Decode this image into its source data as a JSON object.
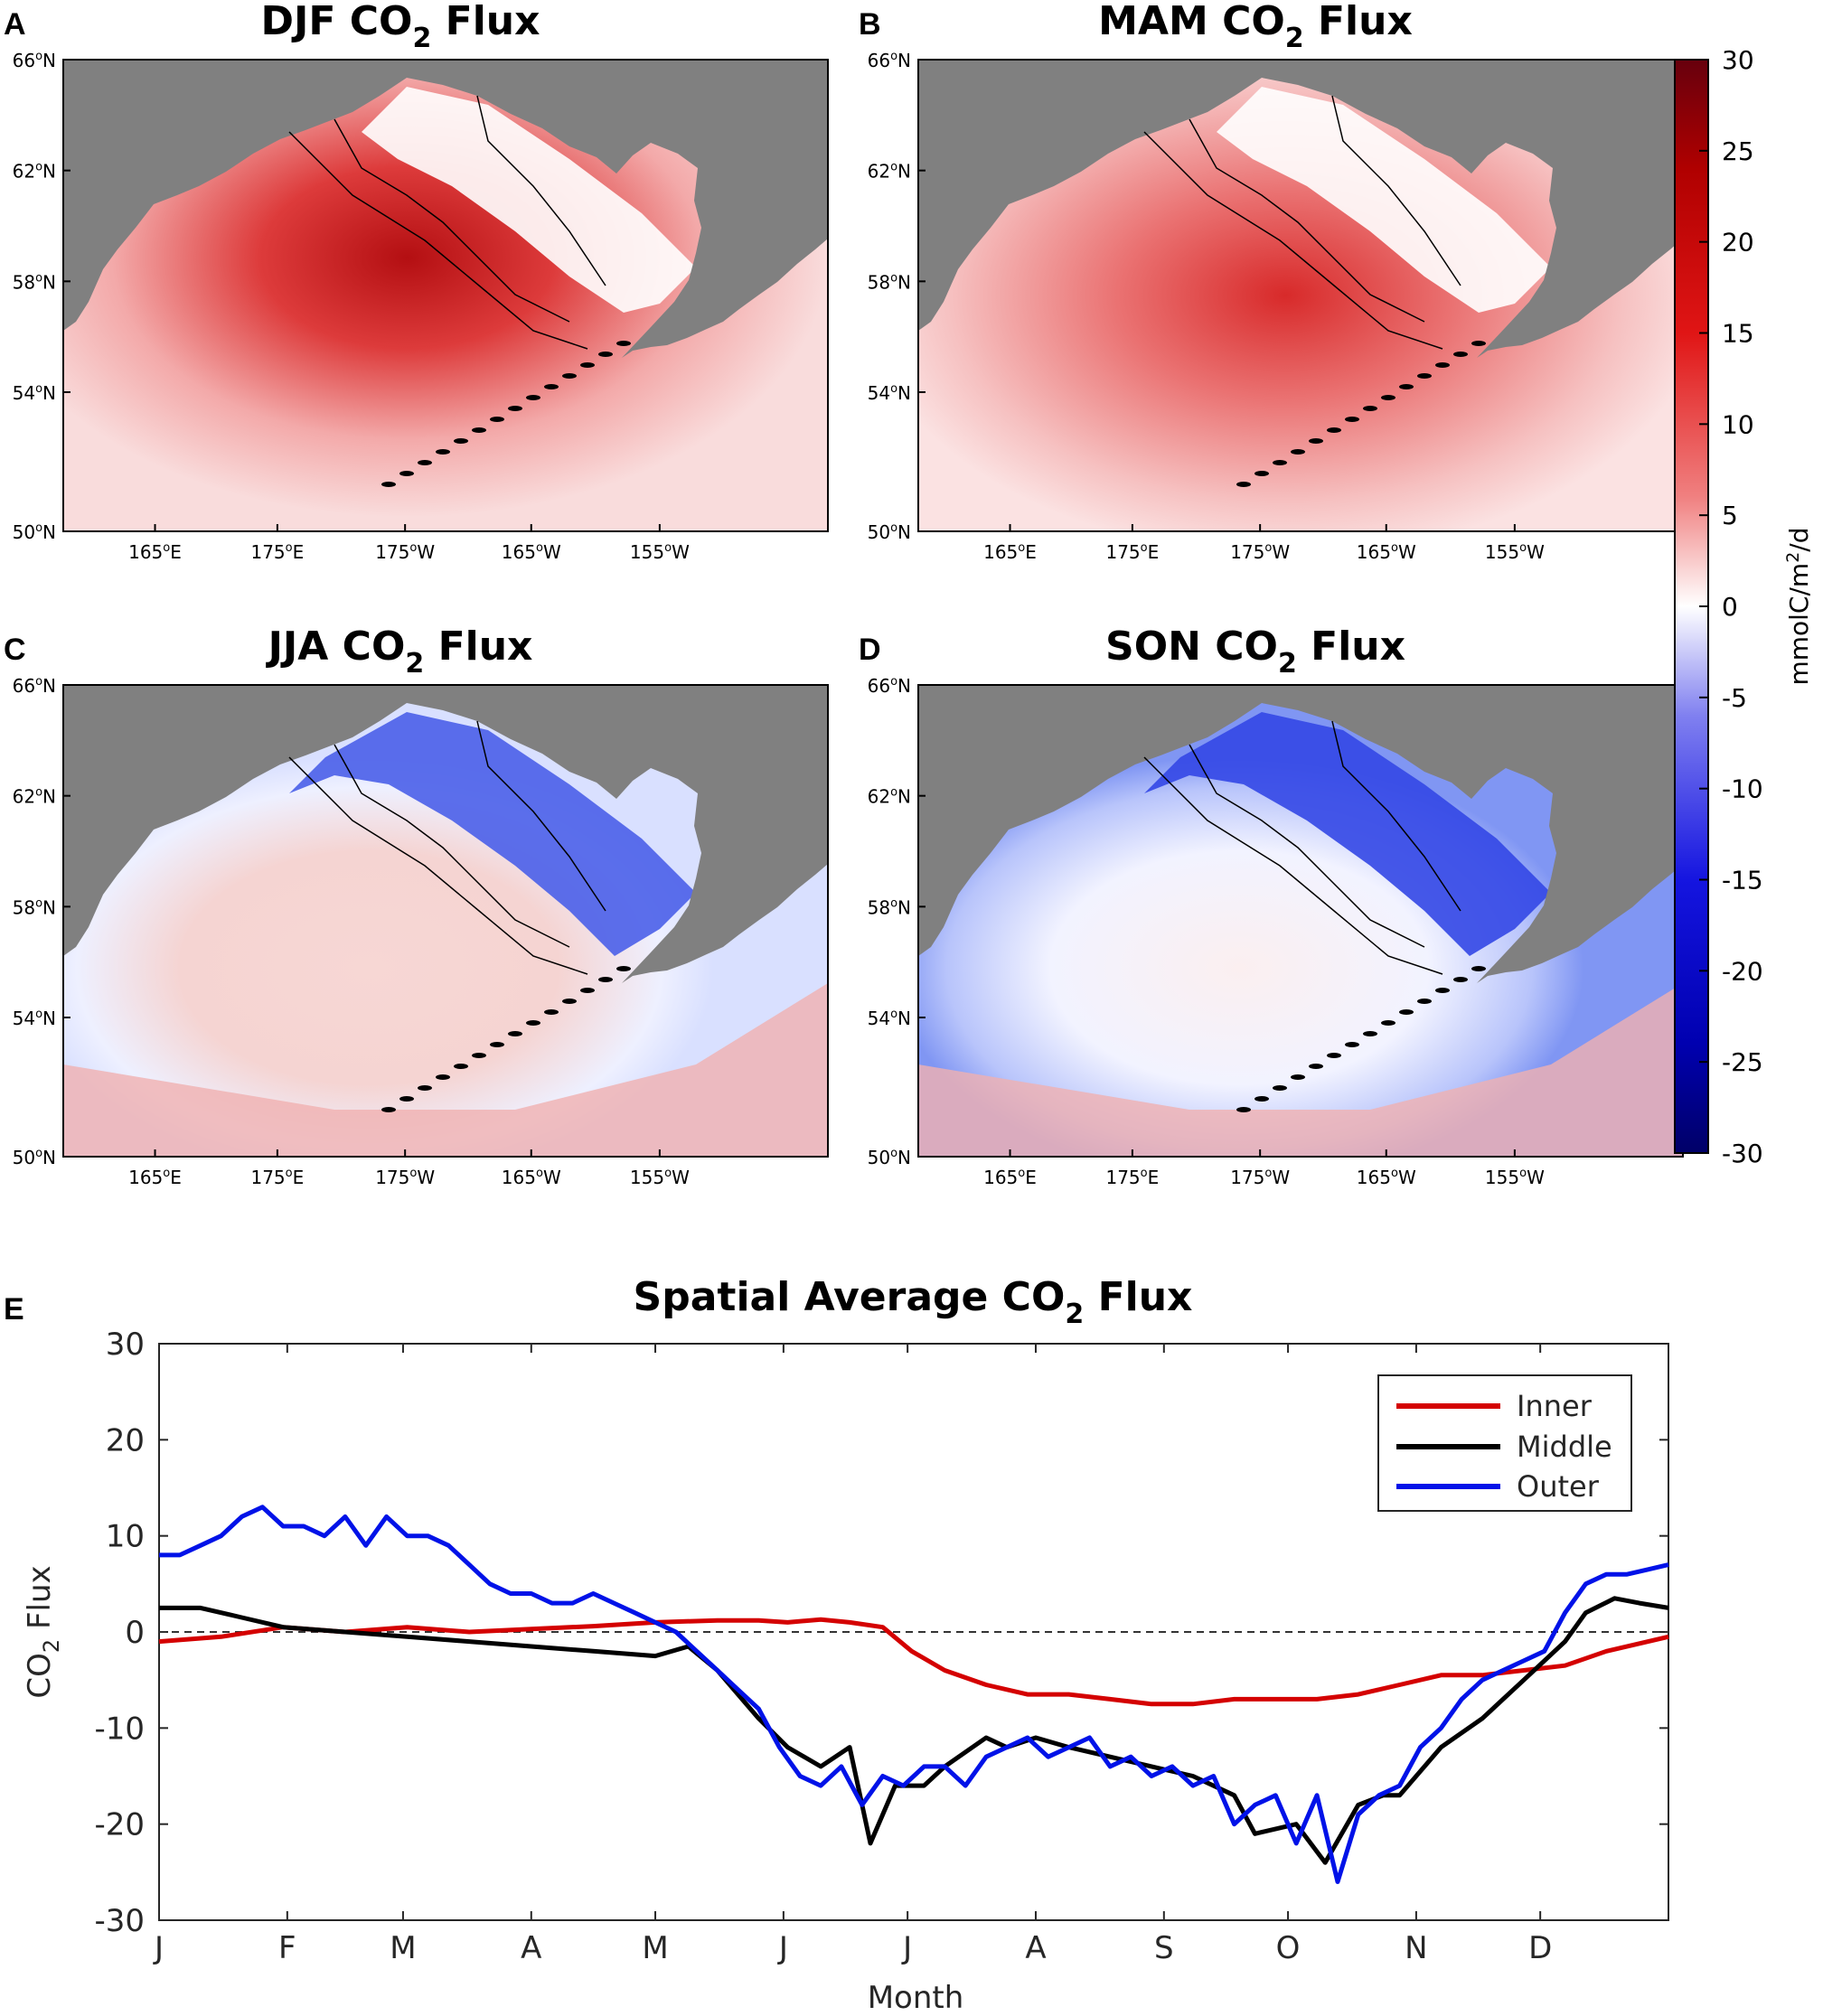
{
  "colors": {
    "land": "#808080",
    "inner": "#d40000",
    "middle": "#000000",
    "outer": "#0012e8",
    "zero_line": "#333333"
  },
  "maps": [
    {
      "panel": "A",
      "title_prefix": "DJF CO",
      "title_sub": "2",
      "title_suffix": " Flux",
      "season": "DJF"
    },
    {
      "panel": "B",
      "title_prefix": "MAM CO",
      "title_sub": "2",
      "title_suffix": " Flux",
      "season": "MAM"
    },
    {
      "panel": "C",
      "title_prefix": "JJA CO",
      "title_sub": "2",
      "title_suffix": " Flux",
      "season": "JJA"
    },
    {
      "panel": "D",
      "title_prefix": "SON CO",
      "title_sub": "2",
      "title_suffix": " Flux",
      "season": "SON"
    }
  ],
  "map_axes": {
    "lat_ticks": [
      {
        "deg": "66",
        "sup": "o",
        "hemi": "N"
      },
      {
        "deg": "62",
        "sup": "o",
        "hemi": "N"
      },
      {
        "deg": "58",
        "sup": "o",
        "hemi": "N"
      },
      {
        "deg": "54",
        "sup": "o",
        "hemi": "N"
      },
      {
        "deg": "50",
        "sup": "o",
        "hemi": "N"
      }
    ],
    "lon_ticks": [
      {
        "deg": "165",
        "sup": "o",
        "hemi": "E"
      },
      {
        "deg": "175",
        "sup": "o",
        "hemi": "E"
      },
      {
        "deg": "175",
        "sup": "o",
        "hemi": "W"
      },
      {
        "deg": "165",
        "sup": "o",
        "hemi": "W"
      },
      {
        "deg": "155",
        "sup": "o",
        "hemi": "W"
      }
    ]
  },
  "colorbar": {
    "min": -30,
    "max": 30,
    "ticks": [
      "30",
      "25",
      "20",
      "15",
      "10",
      "5",
      "0",
      "-5",
      "-10",
      "-15",
      "-20",
      "-25",
      "-30"
    ],
    "label_a": "mmolC/m",
    "label_sup": "2",
    "label_b": "/d"
  },
  "chart_data": {
    "type": "line",
    "panel": "E",
    "title_prefix": "Spatial Average CO",
    "title_sub": "2",
    "title_suffix": " Flux",
    "xlabel": "Month",
    "ylabel_prefix": "CO",
    "ylabel_sub": "2",
    "ylabel_suffix": " Flux",
    "ylim": [
      -30,
      30
    ],
    "xlim": [
      0,
      365
    ],
    "yticks": [
      "30",
      "20",
      "10",
      "0",
      "-10",
      "-20",
      "-30"
    ],
    "xticks": [
      "J",
      "F",
      "M",
      "A",
      "M",
      "J",
      "J",
      "A",
      "S",
      "O",
      "N",
      "D"
    ],
    "legend_position": "top-right",
    "reference_line": 0,
    "series": [
      {
        "name": "Inner",
        "x": [
          0,
          15,
          30,
          45,
          60,
          75,
          90,
          105,
          120,
          135,
          145,
          152,
          160,
          167,
          175,
          182,
          190,
          200,
          210,
          220,
          230,
          240,
          250,
          260,
          270,
          280,
          290,
          300,
          310,
          320,
          330,
          340,
          350,
          365
        ],
        "values": [
          -1,
          -0.5,
          0.5,
          0,
          0.5,
          0,
          0.3,
          0.6,
          1,
          1.2,
          1.2,
          1,
          1.3,
          1,
          0.5,
          -2,
          -4,
          -5.5,
          -6.5,
          -6.5,
          -7,
          -7.5,
          -7.5,
          -7,
          -7,
          -7,
          -6.5,
          -5.5,
          -4.5,
          -4.5,
          -4,
          -3.5,
          -2,
          -0.5
        ]
      },
      {
        "name": "Middle",
        "x": [
          0,
          10,
          20,
          30,
          45,
          60,
          75,
          90,
          105,
          120,
          128,
          135,
          145,
          152,
          160,
          167,
          172,
          178,
          185,
          190,
          200,
          205,
          212,
          220,
          230,
          240,
          250,
          260,
          265,
          275,
          282,
          290,
          296,
          300,
          310,
          320,
          330,
          340,
          345,
          352,
          358,
          365
        ],
        "values": [
          2.5,
          2.5,
          1.5,
          0.5,
          0,
          -0.5,
          -1,
          -1.5,
          -2,
          -2.5,
          -1.5,
          -4,
          -9,
          -12,
          -14,
          -12,
          -22,
          -16,
          -16,
          -14,
          -11,
          -12,
          -11,
          -12,
          -13,
          -14,
          -15,
          -17,
          -21,
          -20,
          -24,
          -18,
          -17,
          -17,
          -12,
          -9,
          -5,
          -1,
          2,
          3.5,
          3,
          2.5
        ]
      },
      {
        "name": "Outer",
        "x": [
          0,
          5,
          10,
          15,
          20,
          25,
          30,
          35,
          40,
          45,
          50,
          55,
          60,
          65,
          70,
          75,
          80,
          85,
          90,
          95,
          100,
          105,
          110,
          115,
          120,
          125,
          130,
          135,
          140,
          145,
          150,
          155,
          160,
          165,
          170,
          175,
          180,
          185,
          190,
          195,
          200,
          205,
          210,
          215,
          220,
          225,
          230,
          235,
          240,
          245,
          250,
          255,
          260,
          265,
          270,
          275,
          280,
          285,
          290,
          295,
          300,
          305,
          310,
          315,
          320,
          325,
          330,
          335,
          340,
          345,
          350,
          355,
          360,
          365
        ],
        "values": [
          8,
          8,
          9,
          10,
          12,
          13,
          11,
          11,
          10,
          12,
          9,
          12,
          10,
          10,
          9,
          7,
          5,
          4,
          4,
          3,
          3,
          4,
          3,
          2,
          1,
          0,
          -2,
          -4,
          -6,
          -8,
          -12,
          -15,
          -16,
          -14,
          -18,
          -15,
          -16,
          -14,
          -14,
          -16,
          -13,
          -12,
          -11,
          -13,
          -12,
          -11,
          -14,
          -13,
          -15,
          -14,
          -16,
          -15,
          -20,
          -18,
          -17,
          -22,
          -17,
          -26,
          -19,
          -17,
          -16,
          -12,
          -10,
          -7,
          -5,
          -4,
          -3,
          -2,
          2,
          5,
          6,
          6,
          6.5,
          7
        ]
      }
    ]
  }
}
